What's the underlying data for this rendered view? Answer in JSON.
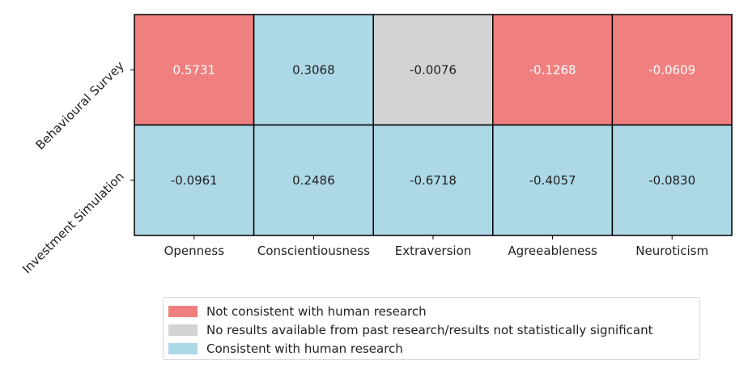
{
  "chart_data": {
    "type": "heatmap",
    "rows": [
      "Behavioural Survey",
      "Investment Simulation"
    ],
    "columns": [
      "Openness",
      "Conscientiousness",
      "Extraversion",
      "Agreeableness",
      "Neuroticism"
    ],
    "values": [
      [
        0.5731,
        0.3068,
        -0.0076,
        -0.1268,
        -0.0609
      ],
      [
        -0.0961,
        0.2486,
        -0.6718,
        -0.4057,
        -0.083
      ]
    ],
    "value_labels": [
      [
        "0.5731",
        "0.3068",
        "-0.0076",
        "-0.1268",
        "-0.0609"
      ],
      [
        "-0.0961",
        "0.2486",
        "-0.6718",
        "-0.4057",
        "-0.0830"
      ]
    ],
    "categories_matrix": [
      [
        "not_consistent",
        "consistent",
        "no_results",
        "not_consistent",
        "not_consistent"
      ],
      [
        "consistent",
        "consistent",
        "consistent",
        "consistent",
        "consistent"
      ]
    ],
    "category_colors": {
      "not_consistent": "#f08080",
      "no_results": "#d3d3d3",
      "consistent": "#add8e6"
    },
    "text_colors": {
      "not_consistent": "#ffffff",
      "no_results": "#222222",
      "consistent": "#222222"
    },
    "legend": [
      {
        "key": "not_consistent",
        "label": "Not consistent with human research"
      },
      {
        "key": "no_results",
        "label": "No results available from past research/results not statistically significant"
      },
      {
        "key": "consistent",
        "label": "Consistent with human research"
      }
    ],
    "legend_position": "bottom-center"
  }
}
